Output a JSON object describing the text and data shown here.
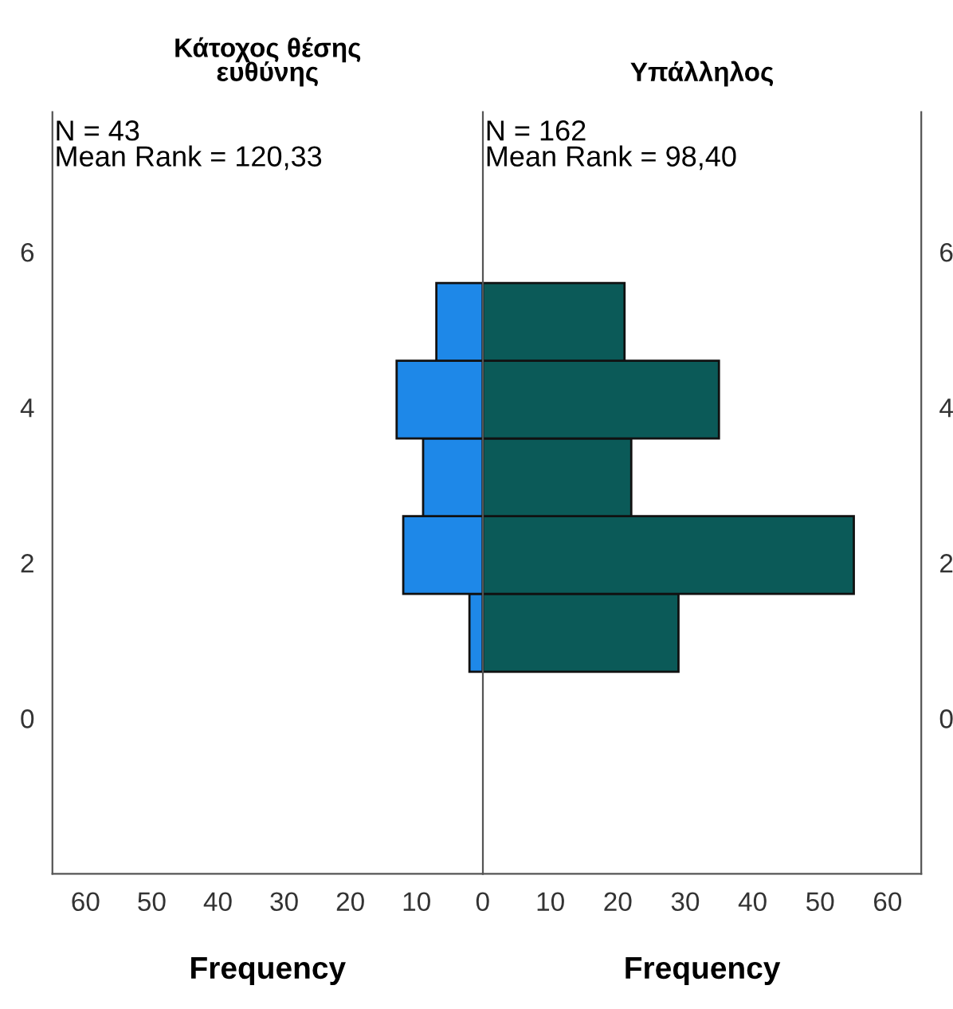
{
  "chart_data": [
    {
      "type": "histogram",
      "orientation": "horizontal",
      "title": "Κάτοχος θέσης\nευθύνης",
      "xlabel": "Frequency",
      "annotations": [
        "N = 43\nMean Rank = 120,33"
      ],
      "bins": [
        0.6,
        1.6,
        2.6,
        3.6,
        4.6,
        5.6
      ],
      "values": [
        2,
        12,
        9,
        13,
        7
      ],
      "color": "#1e88e8",
      "xlim": [
        65,
        0
      ],
      "xticks": [
        60,
        50,
        40,
        30,
        20,
        10,
        0
      ],
      "ylim": [
        -2,
        7.8
      ],
      "yticks": [
        0,
        2,
        4,
        6
      ],
      "grid": false
    },
    {
      "type": "histogram",
      "orientation": "horizontal",
      "title": "Υπάλληλος",
      "xlabel": "Frequency",
      "annotations": [
        "N = 162\nMean Rank = 98,40"
      ],
      "bins": [
        0.6,
        1.6,
        2.6,
        3.6,
        4.6,
        5.6
      ],
      "values": [
        29,
        55,
        22,
        35,
        21
      ],
      "color": "#0b5a58",
      "xlim": [
        0,
        65
      ],
      "xticks": [
        10,
        20,
        30,
        40,
        50,
        60
      ],
      "ylim": [
        -2,
        7.8
      ],
      "yticks": [
        0,
        2,
        4,
        6
      ],
      "grid": false
    }
  ]
}
